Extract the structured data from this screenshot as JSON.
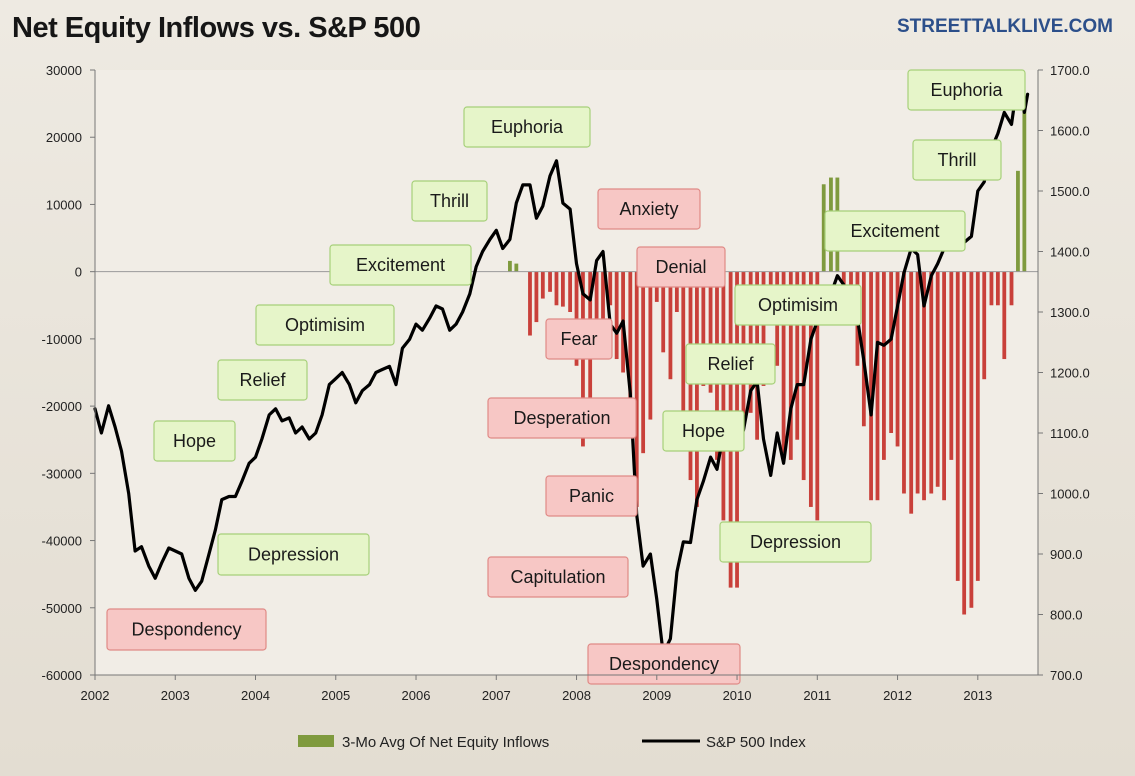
{
  "header": {
    "title": "Net Equity Inflows vs. S&P 500",
    "brand": "STREETTALKLIVE.COM"
  },
  "colors": {
    "positive_bar": "#7f9a3e",
    "negative_bar": "#c9403a",
    "line": "#000000",
    "green_box": "#e6f5c9",
    "green_border": "#a7d07a",
    "red_box": "#f7c7c5",
    "red_border": "#e08a86"
  },
  "chart_data": {
    "type": "bar+line",
    "title": "Net Equity Inflows vs. S&P 500",
    "xlim": [
      2002,
      2013.75
    ],
    "x_ticks": [
      "2002",
      "2003",
      "2004",
      "2005",
      "2006",
      "2007",
      "2008",
      "2009",
      "2010",
      "2011",
      "2012",
      "2013"
    ],
    "y_left": {
      "lim": [
        -60000,
        30000
      ],
      "ticks": [
        "30000",
        "20000",
        "10000",
        "0",
        "-10000",
        "-20000",
        "-30000",
        "-40000",
        "-50000",
        "-60000"
      ]
    },
    "y_right": {
      "lim": [
        700,
        1700
      ],
      "ticks": [
        "1700.0",
        "1600.0",
        "1500.0",
        "1400.0",
        "1300.0",
        "1200.0",
        "1100.0",
        "1000.0",
        "900.0",
        "800.0",
        "700.0"
      ]
    },
    "legend": [
      "3-Mo Avg Of Net Equity Inflows",
      "S&P 500 Index"
    ],
    "legend_position": "bottom",
    "grid": false,
    "bar_series": {
      "name": "3-Mo Avg Of Net Equity Inflows",
      "points": [
        [
          2007.17,
          1600
        ],
        [
          2007.25,
          1200
        ],
        [
          2007.42,
          -9500
        ],
        [
          2007.5,
          -7500
        ],
        [
          2007.58,
          -4000
        ],
        [
          2007.67,
          -3000
        ],
        [
          2007.75,
          -5000
        ],
        [
          2007.83,
          -5200
        ],
        [
          2007.92,
          -6000
        ],
        [
          2008.0,
          -14000
        ],
        [
          2008.08,
          -26000
        ],
        [
          2008.17,
          -21000
        ],
        [
          2008.25,
          -12000
        ],
        [
          2008.33,
          -9000
        ],
        [
          2008.42,
          -5000
        ],
        [
          2008.5,
          -13000
        ],
        [
          2008.58,
          -15000
        ],
        [
          2008.67,
          -22000
        ],
        [
          2008.75,
          -35000
        ],
        [
          2008.83,
          -27000
        ],
        [
          2008.92,
          -22000
        ],
        [
          2009.0,
          -4500
        ],
        [
          2009.08,
          -12000
        ],
        [
          2009.17,
          -16000
        ],
        [
          2009.25,
          -6000
        ],
        [
          2009.33,
          -26000
        ],
        [
          2009.42,
          -31000
        ],
        [
          2009.5,
          -35000
        ],
        [
          2009.58,
          -17000
        ],
        [
          2009.67,
          -18000
        ],
        [
          2009.75,
          -28000
        ],
        [
          2009.83,
          -37000
        ],
        [
          2009.92,
          -47000
        ],
        [
          2010.0,
          -47000
        ],
        [
          2010.08,
          -23000
        ],
        [
          2010.17,
          -21000
        ],
        [
          2010.25,
          -25000
        ],
        [
          2010.33,
          -17000
        ],
        [
          2010.42,
          -4500
        ],
        [
          2010.5,
          -14000
        ],
        [
          2010.58,
          -27000
        ],
        [
          2010.67,
          -28000
        ],
        [
          2010.75,
          -25000
        ],
        [
          2010.83,
          -31000
        ],
        [
          2010.92,
          -35000
        ],
        [
          2011.0,
          -37000
        ],
        [
          2011.08,
          13000
        ],
        [
          2011.17,
          14000
        ],
        [
          2011.25,
          14000
        ],
        [
          2011.33,
          -2000
        ],
        [
          2011.42,
          -4000
        ],
        [
          2011.5,
          -14000
        ],
        [
          2011.58,
          -23000
        ],
        [
          2011.67,
          -34000
        ],
        [
          2011.75,
          -34000
        ],
        [
          2011.83,
          -28000
        ],
        [
          2011.92,
          -24000
        ],
        [
          2012.0,
          -26000
        ],
        [
          2012.08,
          -33000
        ],
        [
          2012.17,
          -36000
        ],
        [
          2012.25,
          -33000
        ],
        [
          2012.33,
          -34000
        ],
        [
          2012.42,
          -33000
        ],
        [
          2012.5,
          -32000
        ],
        [
          2012.58,
          -34000
        ],
        [
          2012.67,
          -28000
        ],
        [
          2012.75,
          -46000
        ],
        [
          2012.83,
          -51000
        ],
        [
          2012.92,
          -50000
        ],
        [
          2013.0,
          -46000
        ],
        [
          2013.08,
          -16000
        ],
        [
          2013.17,
          -5000
        ],
        [
          2013.25,
          -5000
        ],
        [
          2013.33,
          -13000
        ],
        [
          2013.42,
          -5000
        ],
        [
          2013.5,
          15000
        ],
        [
          2013.58,
          25000
        ]
      ]
    },
    "line_series": {
      "name": "S&P 500 Index",
      "points": [
        [
          2002.0,
          1140
        ],
        [
          2002.08,
          1100
        ],
        [
          2002.17,
          1145
        ],
        [
          2002.25,
          1110
        ],
        [
          2002.33,
          1070
        ],
        [
          2002.42,
          1000
        ],
        [
          2002.5,
          905
        ],
        [
          2002.58,
          912
        ],
        [
          2002.67,
          880
        ],
        [
          2002.75,
          860
        ],
        [
          2002.83,
          885
        ],
        [
          2002.92,
          910
        ],
        [
          2003.0,
          905
        ],
        [
          2003.08,
          900
        ],
        [
          2003.17,
          860
        ],
        [
          2003.25,
          840
        ],
        [
          2003.33,
          855
        ],
        [
          2003.42,
          900
        ],
        [
          2003.5,
          940
        ],
        [
          2003.58,
          990
        ],
        [
          2003.67,
          995
        ],
        [
          2003.75,
          995
        ],
        [
          2003.83,
          1020
        ],
        [
          2003.92,
          1050
        ],
        [
          2004.0,
          1060
        ],
        [
          2004.08,
          1090
        ],
        [
          2004.17,
          1130
        ],
        [
          2004.25,
          1140
        ],
        [
          2004.33,
          1120
        ],
        [
          2004.42,
          1125
        ],
        [
          2004.5,
          1100
        ],
        [
          2004.58,
          1110
        ],
        [
          2004.67,
          1090
        ],
        [
          2004.75,
          1100
        ],
        [
          2004.83,
          1130
        ],
        [
          2004.92,
          1180
        ],
        [
          2005.0,
          1190
        ],
        [
          2005.08,
          1200
        ],
        [
          2005.17,
          1180
        ],
        [
          2005.25,
          1150
        ],
        [
          2005.33,
          1170
        ],
        [
          2005.42,
          1180
        ],
        [
          2005.5,
          1200
        ],
        [
          2005.58,
          1205
        ],
        [
          2005.67,
          1210
        ],
        [
          2005.75,
          1180
        ],
        [
          2005.83,
          1240
        ],
        [
          2005.92,
          1255
        ],
        [
          2006.0,
          1280
        ],
        [
          2006.08,
          1270
        ],
        [
          2006.17,
          1290
        ],
        [
          2006.25,
          1310
        ],
        [
          2006.33,
          1305
        ],
        [
          2006.42,
          1270
        ],
        [
          2006.5,
          1280
        ],
        [
          2006.58,
          1300
        ],
        [
          2006.67,
          1330
        ],
        [
          2006.75,
          1375
        ],
        [
          2006.83,
          1400
        ],
        [
          2006.92,
          1420
        ],
        [
          2007.0,
          1435
        ],
        [
          2007.08,
          1405
        ],
        [
          2007.17,
          1420
        ],
        [
          2007.25,
          1480
        ],
        [
          2007.33,
          1510
        ],
        [
          2007.42,
          1510
        ],
        [
          2007.5,
          1455
        ],
        [
          2007.58,
          1475
        ],
        [
          2007.67,
          1525
        ],
        [
          2007.75,
          1550
        ],
        [
          2007.83,
          1480
        ],
        [
          2007.92,
          1470
        ],
        [
          2008.0,
          1380
        ],
        [
          2008.08,
          1330
        ],
        [
          2008.17,
          1320
        ],
        [
          2008.25,
          1385
        ],
        [
          2008.33,
          1400
        ],
        [
          2008.42,
          1280
        ],
        [
          2008.5,
          1265
        ],
        [
          2008.58,
          1285
        ],
        [
          2008.67,
          1165
        ],
        [
          2008.75,
          965
        ],
        [
          2008.83,
          880
        ],
        [
          2008.92,
          900
        ],
        [
          2009.0,
          825
        ],
        [
          2009.08,
          735
        ],
        [
          2009.17,
          760
        ],
        [
          2009.25,
          870
        ],
        [
          2009.33,
          920
        ],
        [
          2009.42,
          919
        ],
        [
          2009.5,
          990
        ],
        [
          2009.58,
          1020
        ],
        [
          2009.67,
          1060
        ],
        [
          2009.75,
          1040
        ],
        [
          2009.83,
          1100
        ],
        [
          2009.92,
          1115
        ],
        [
          2010.0,
          1075
        ],
        [
          2010.08,
          1105
        ],
        [
          2010.17,
          1170
        ],
        [
          2010.25,
          1185
        ],
        [
          2010.33,
          1090
        ],
        [
          2010.42,
          1030
        ],
        [
          2010.5,
          1100
        ],
        [
          2010.58,
          1050
        ],
        [
          2010.67,
          1140
        ],
        [
          2010.75,
          1180
        ],
        [
          2010.83,
          1180
        ],
        [
          2010.92,
          1255
        ],
        [
          2011.0,
          1285
        ],
        [
          2011.08,
          1325
        ],
        [
          2011.17,
          1330
        ],
        [
          2011.25,
          1360
        ],
        [
          2011.33,
          1345
        ],
        [
          2011.42,
          1320
        ],
        [
          2011.5,
          1290
        ],
        [
          2011.58,
          1220
        ],
        [
          2011.67,
          1130
        ],
        [
          2011.75,
          1250
        ],
        [
          2011.83,
          1245
        ],
        [
          2011.92,
          1255
        ],
        [
          2012.0,
          1310
        ],
        [
          2012.08,
          1365
        ],
        [
          2012.17,
          1405
        ],
        [
          2012.25,
          1395
        ],
        [
          2012.33,
          1310
        ],
        [
          2012.42,
          1360
        ],
        [
          2012.5,
          1380
        ],
        [
          2012.58,
          1405
        ],
        [
          2012.67,
          1440
        ],
        [
          2012.75,
          1415
        ],
        [
          2012.83,
          1415
        ],
        [
          2012.92,
          1425
        ],
        [
          2013.0,
          1500
        ],
        [
          2013.08,
          1515
        ],
        [
          2013.17,
          1570
        ],
        [
          2013.25,
          1595
        ],
        [
          2013.33,
          1630
        ],
        [
          2013.42,
          1610
        ],
        [
          2013.5,
          1685
        ],
        [
          2013.58,
          1630
        ],
        [
          2013.62,
          1660
        ]
      ]
    },
    "phase_labels": [
      {
        "text": "Despondency",
        "tone": "red"
      },
      {
        "text": "Depression",
        "tone": "green"
      },
      {
        "text": "Hope",
        "tone": "green"
      },
      {
        "text": "Relief",
        "tone": "green"
      },
      {
        "text": "Optimisim",
        "tone": "green"
      },
      {
        "text": "Excitement",
        "tone": "green"
      },
      {
        "text": "Thrill",
        "tone": "green"
      },
      {
        "text": "Euphoria",
        "tone": "green"
      },
      {
        "text": "Anxiety",
        "tone": "red"
      },
      {
        "text": "Denial",
        "tone": "red"
      },
      {
        "text": "Fear",
        "tone": "red"
      },
      {
        "text": "Desperation",
        "tone": "red"
      },
      {
        "text": "Panic",
        "tone": "red"
      },
      {
        "text": "Capitulation",
        "tone": "red"
      },
      {
        "text": "Despondency",
        "tone": "red"
      },
      {
        "text": "Depression",
        "tone": "green"
      },
      {
        "text": "Hope",
        "tone": "green"
      },
      {
        "text": "Relief",
        "tone": "green"
      },
      {
        "text": "Optimisim",
        "tone": "green"
      },
      {
        "text": "Excitement",
        "tone": "green"
      },
      {
        "text": "Thrill",
        "tone": "green"
      },
      {
        "text": "Euphoria",
        "tone": "green"
      }
    ]
  }
}
